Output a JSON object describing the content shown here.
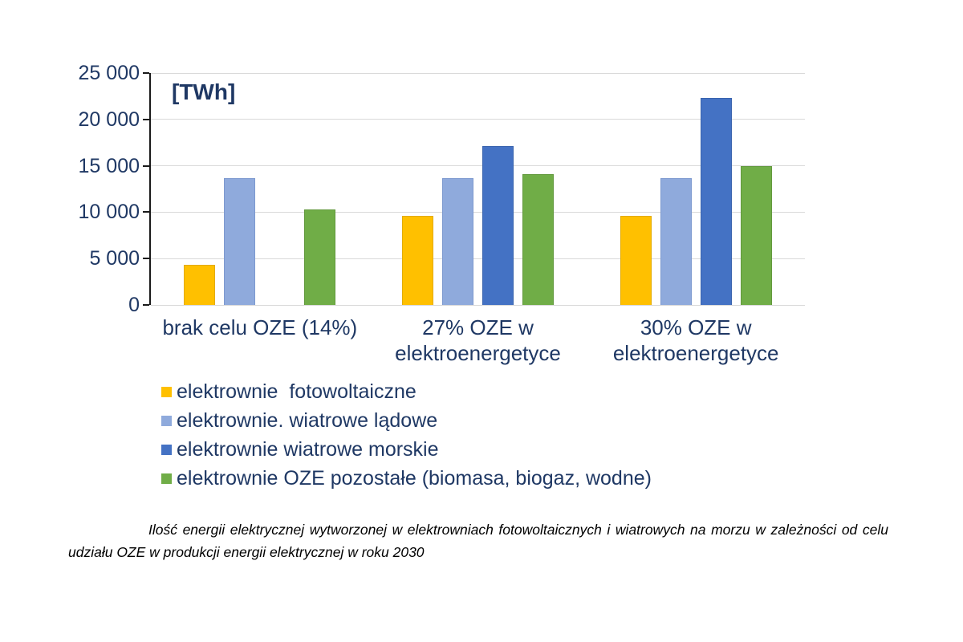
{
  "chart_data": {
    "type": "bar",
    "unit_title": "[TWh]",
    "categories": [
      "brak celu OZE (14%)",
      "27% OZE w\nelektroenergetyce",
      "30% OZE w\nelektroenergetyce"
    ],
    "series": [
      {
        "name": "elektrownie  fotowoltaiczne",
        "color": "#FFC000",
        "border": "#e3ab00",
        "values": [
          4300,
          9600,
          9600
        ]
      },
      {
        "name": "elektrownie. wiatrowe lądowe",
        "color": "#8FAADC",
        "border": "#7d99cf",
        "values": [
          13700,
          13700,
          13700
        ]
      },
      {
        "name": "elektrownie wiatrowe morskie",
        "color": "#4472C4",
        "border": "#3a64ae",
        "values": [
          0,
          17100,
          22300
        ]
      },
      {
        "name": "elektrownie OZE pozostałe (biomasa, biogaz, wodne)",
        "color": "#70AD47",
        "border": "#62993d",
        "values": [
          10300,
          14100,
          15000
        ]
      }
    ],
    "ylim": [
      0,
      25000
    ],
    "ytick_step": 5000,
    "yticks": [
      {
        "value": 0,
        "label": "0"
      },
      {
        "value": 5000,
        "label": "5 000"
      },
      {
        "value": 10000,
        "label": "10 000"
      },
      {
        "value": 15000,
        "label": "15 000"
      },
      {
        "value": 20000,
        "label": "20 000"
      },
      {
        "value": 25000,
        "label": "25 000"
      }
    ],
    "grid": true,
    "legend_position": "bottom-left"
  },
  "colors": {
    "axis_text": "#1f3864",
    "gridline": "#d9d9d9",
    "axis_line": "#1a1a1a",
    "background": "#ffffff"
  },
  "caption": "Ilość energii elektrycznej wytworzonej w elektrowniach fotowoltaicznych i wiatrowych na morzu w zależności od celu udziału OZE w produkcji energii elektrycznej w roku 2030"
}
